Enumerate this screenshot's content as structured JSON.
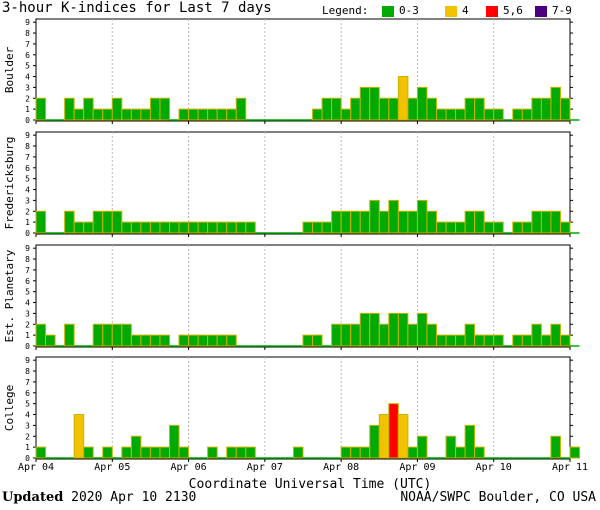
{
  "header": {
    "title": "3-hour K-indices for Last 7 days",
    "legend_label": "Legend:",
    "legend": [
      {
        "label": "0-3",
        "color": "#00aa00"
      },
      {
        "label": "4",
        "color": "#f2c200"
      },
      {
        "label": "5,6",
        "color": "#ff0000"
      },
      {
        "label": "7-9",
        "color": "#4b0082"
      }
    ]
  },
  "footer": {
    "updated_label": "Updated",
    "updated_value": "2020 Apr 10 2130",
    "source": "NOAA/SWPC Boulder, CO USA"
  },
  "chart_data": {
    "type": "bar",
    "xlabel": "Coordinate Universal Time (UTC)",
    "x_tick_labels": [
      "Apr 04",
      "Apr 05",
      "Apr 06",
      "Apr 07",
      "Apr 08",
      "Apr 09",
      "Apr 10",
      "Apr 11"
    ],
    "ylim": [
      0,
      9
    ],
    "y_ticks": [
      0,
      1,
      2,
      3,
      4,
      5,
      6,
      7,
      8,
      9
    ],
    "bars_per_day": 8,
    "color_scale": [
      {
        "range": "0-3",
        "color": "#00aa00"
      },
      {
        "range": "4",
        "color": "#f2c200"
      },
      {
        "range": "5,6",
        "color": "#ff0000"
      },
      {
        "range": "7-9",
        "color": "#4b0082"
      }
    ],
    "panels": [
      {
        "name": "Boulder",
        "values": [
          2,
          0,
          0,
          2,
          1,
          2,
          1,
          1,
          2,
          1,
          1,
          1,
          2,
          2,
          0,
          1,
          1,
          1,
          1,
          1,
          1,
          2,
          0,
          0,
          0,
          0,
          0,
          0,
          0,
          1,
          2,
          2,
          1,
          2,
          3,
          3,
          2,
          2,
          4,
          2,
          3,
          2,
          1,
          1,
          1,
          2,
          2,
          1,
          1,
          0,
          1,
          1,
          2,
          2,
          3,
          2,
          0
        ]
      },
      {
        "name": "Fredericksburg",
        "values": [
          2,
          0,
          0,
          2,
          1,
          1,
          2,
          2,
          2,
          1,
          1,
          1,
          1,
          1,
          1,
          1,
          1,
          1,
          1,
          1,
          1,
          1,
          1,
          0,
          0,
          0,
          0,
          0,
          1,
          1,
          1,
          2,
          2,
          2,
          2,
          3,
          2,
          3,
          2,
          2,
          3,
          2,
          1,
          1,
          1,
          2,
          2,
          1,
          1,
          0,
          1,
          1,
          2,
          2,
          2,
          1,
          0
        ]
      },
      {
        "name": "Est. Planetary",
        "values": [
          2,
          1,
          0,
          2,
          0,
          0,
          2,
          2,
          2,
          2,
          1,
          1,
          1,
          1,
          0,
          1,
          1,
          1,
          1,
          1,
          1,
          0,
          0,
          0,
          0,
          0,
          0,
          0,
          1,
          1,
          0,
          2,
          2,
          2,
          3,
          3,
          2,
          3,
          3,
          2,
          3,
          2,
          1,
          1,
          1,
          2,
          1,
          1,
          1,
          0,
          1,
          1,
          2,
          1,
          2,
          1,
          0
        ]
      },
      {
        "name": "College",
        "values": [
          1,
          0,
          0,
          0,
          4,
          1,
          0,
          1,
          0,
          1,
          2,
          1,
          1,
          1,
          3,
          1,
          0,
          0,
          1,
          0,
          1,
          1,
          1,
          0,
          0,
          0,
          0,
          1,
          0,
          0,
          0,
          0,
          1,
          1,
          1,
          3,
          4,
          5,
          4,
          1,
          2,
          0,
          0,
          2,
          1,
          3,
          1,
          0,
          0,
          0,
          0,
          0,
          0,
          0,
          2,
          0,
          1
        ]
      }
    ]
  }
}
